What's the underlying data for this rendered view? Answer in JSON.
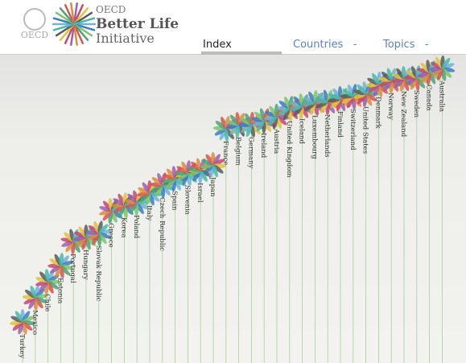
{
  "header": {
    "logo_text": "OECD",
    "org": "OECD",
    "title_line1": "Better Life",
    "title_line2": "Initiative"
  },
  "nav": [
    {
      "label": "Index"
    },
    {
      "label": "Countries",
      "marker": "-"
    },
    {
      "label": "Topics",
      "marker": "-"
    }
  ],
  "countries": [
    "Turkey",
    "Mexico",
    "Chile",
    "Estonia",
    "Portugal",
    "Hungary",
    "Slovak Republic",
    "Greece",
    "Korea",
    "Poland",
    "Italy",
    "Czech Republic",
    "Spain",
    "Slovenia",
    "Israel",
    "Japan",
    "France",
    "Belgium",
    "Germany",
    "Ireland",
    "Austria",
    "United Kingdom",
    "Iceland",
    "Luxembourg",
    "Netherlands",
    "Finland",
    "Switzerland",
    "United States",
    "Denmark",
    "Norway",
    "New Zealand",
    "Sweden",
    "Canada",
    "Australia"
  ]
}
